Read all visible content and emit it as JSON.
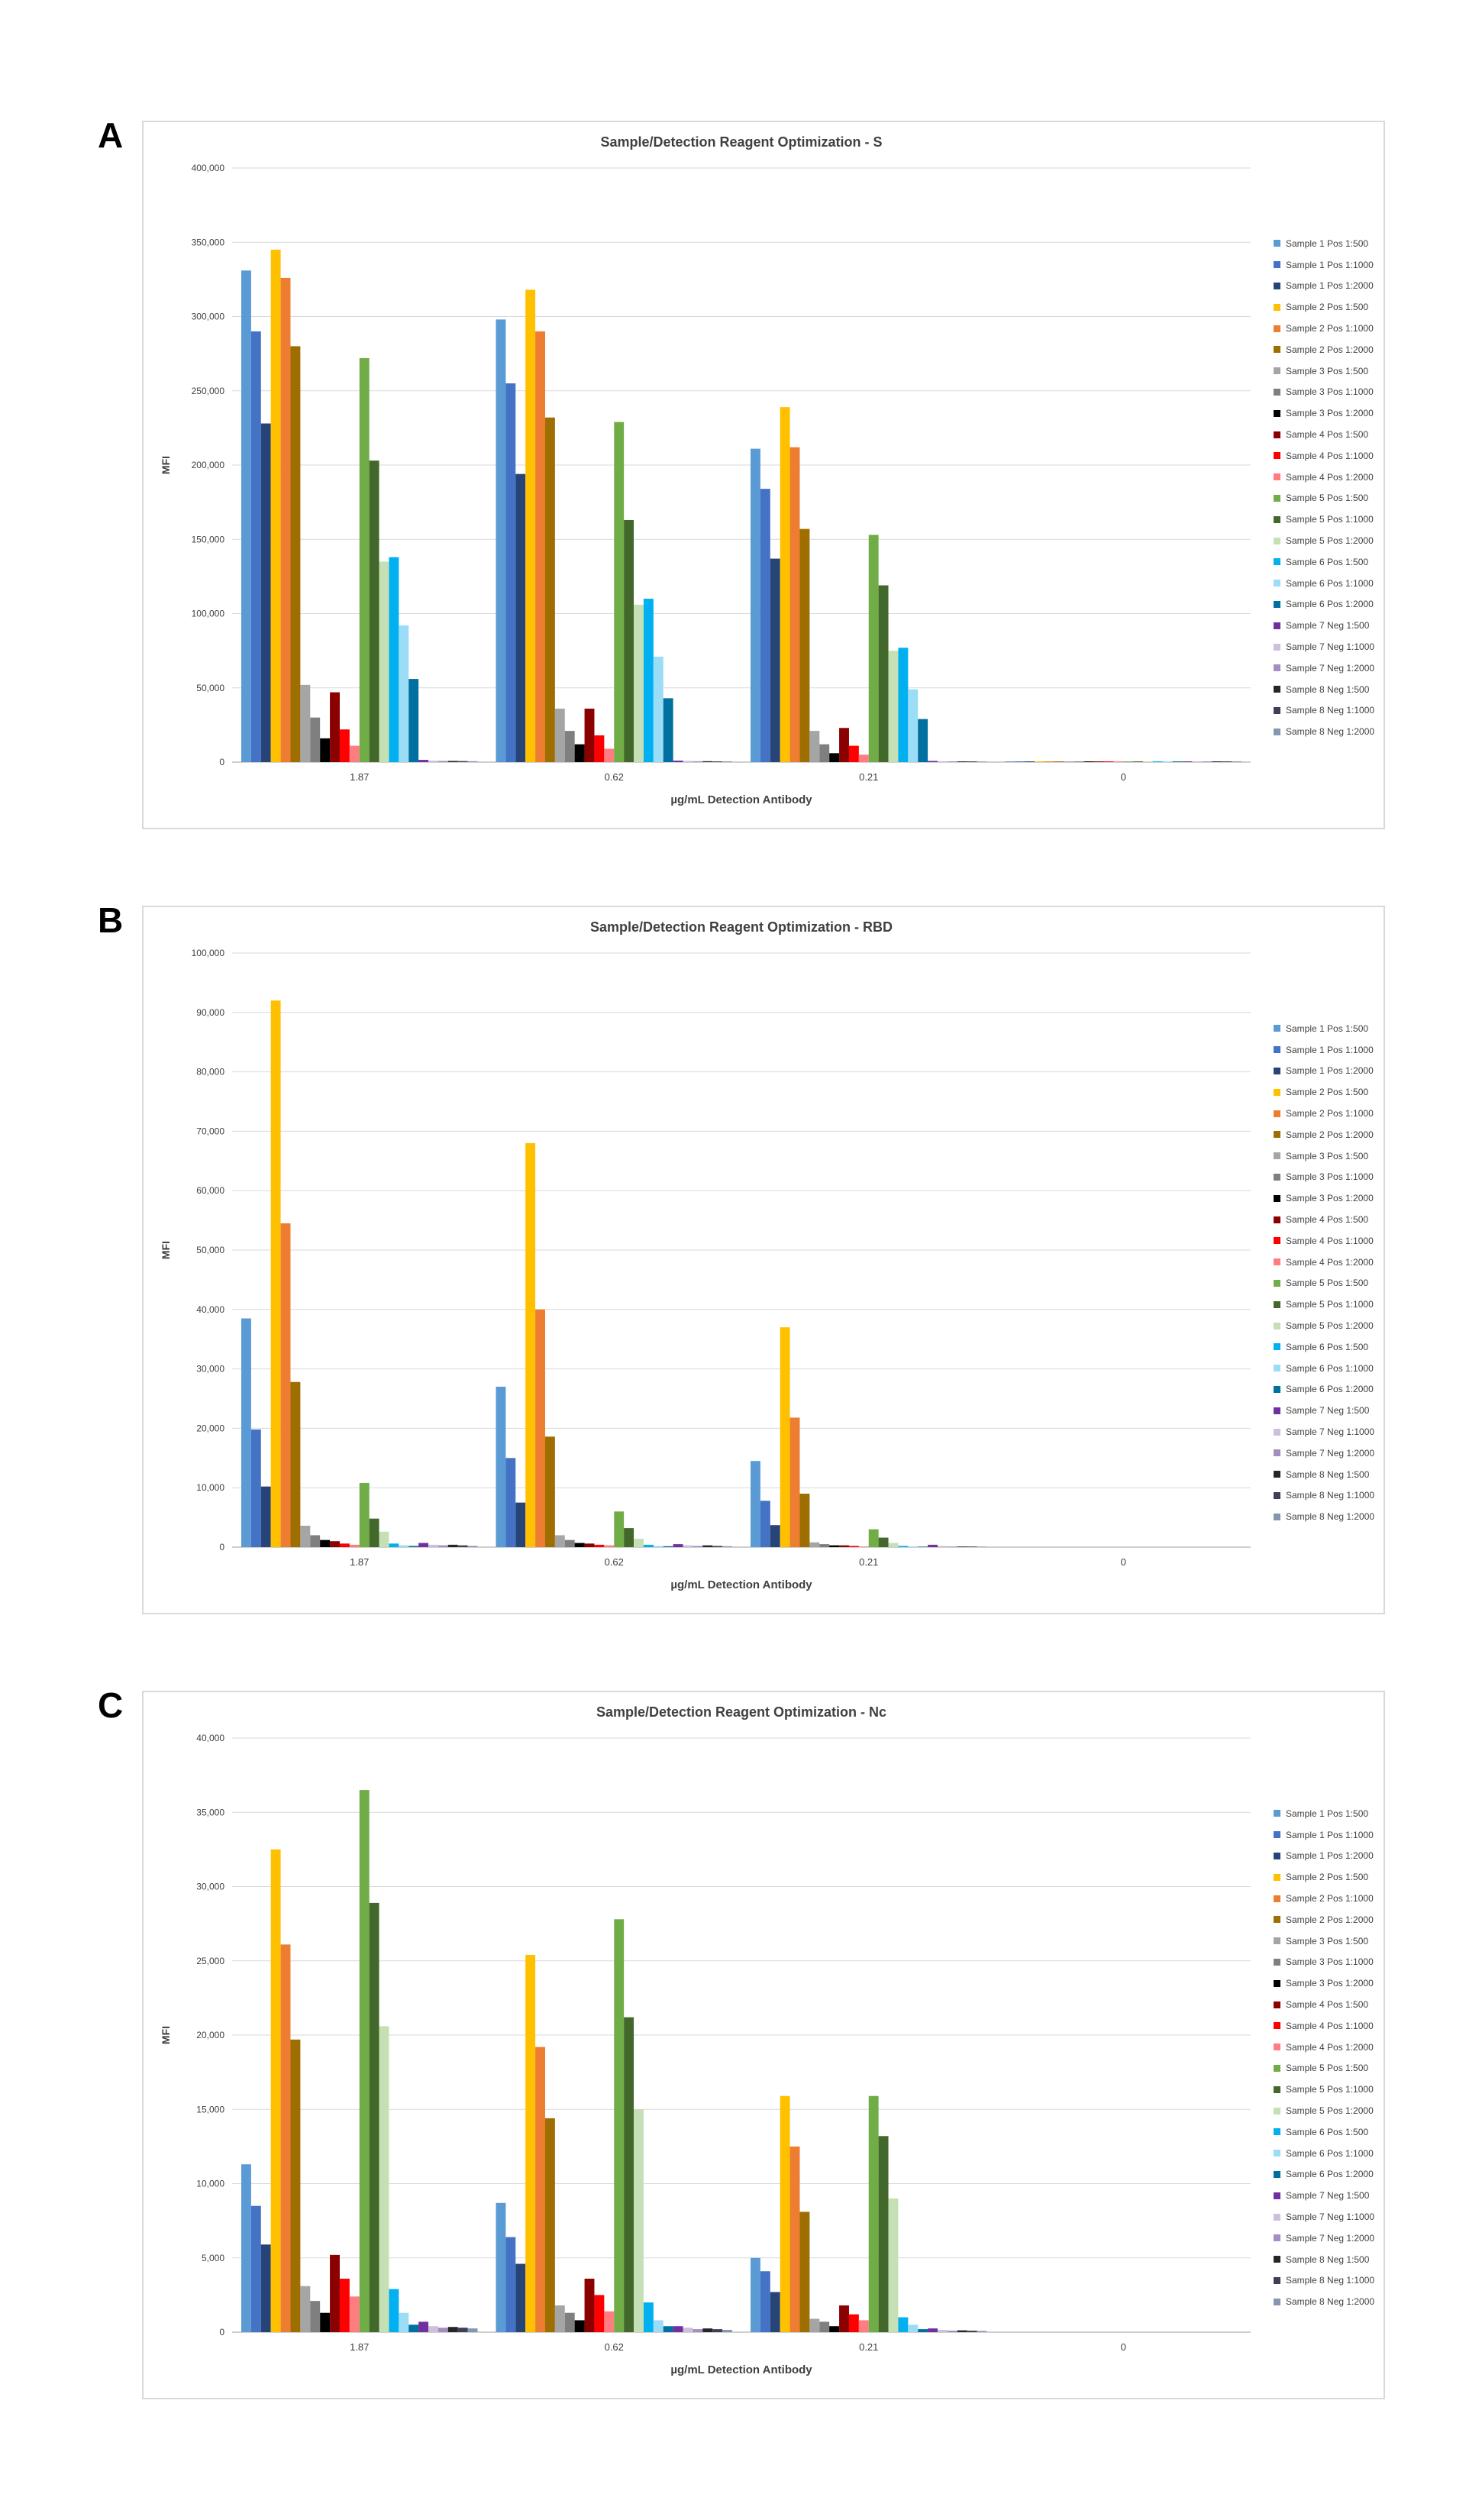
{
  "panels": [
    {
      "letter": "A"
    },
    {
      "letter": "B"
    },
    {
      "letter": "C"
    }
  ],
  "series_colors": [
    "#5b9bd5",
    "#4472c4",
    "#264478",
    "#ffc000",
    "#ed7d31",
    "#9e6f00",
    "#a5a5a5",
    "#7f7f7f",
    "#000000",
    "#8b0000",
    "#ff0000",
    "#ff7c80",
    "#70ad47",
    "#43682b",
    "#c5e0b4",
    "#00b0f0",
    "#9bdcf7",
    "#0070a0",
    "#7030a0",
    "#ccc0da",
    "#a48dc0",
    "#262626",
    "#403f58",
    "#8496b0"
  ],
  "chart_data": [
    {
      "type": "bar",
      "title": "Sample/Detection Reagent Optimization - S",
      "xlabel": "µg/mL Detection Antibody",
      "ylabel": "MFI",
      "ylim": [
        0,
        400000
      ],
      "yticks": [
        0,
        50000,
        100000,
        150000,
        200000,
        250000,
        300000,
        350000,
        400000
      ],
      "ytick_labels": [
        "0",
        "50,000",
        "100,000",
        "150,000",
        "200,000",
        "250,000",
        "300,000",
        "350,000",
        "400,000"
      ],
      "grid": true,
      "legend_position": "right",
      "categories": [
        "1.87",
        "0.62",
        "0.21",
        "0"
      ],
      "series": [
        {
          "name": "Sample 1 Pos 1:500",
          "values": [
            331000,
            298000,
            211000,
            500
          ]
        },
        {
          "name": "Sample 1 Pos 1:1000",
          "values": [
            290000,
            255000,
            184000,
            500
          ]
        },
        {
          "name": "Sample 1 Pos 1:2000",
          "values": [
            228000,
            194000,
            137000,
            500
          ]
        },
        {
          "name": "Sample 2 Pos 1:500",
          "values": [
            345000,
            318000,
            239000,
            500
          ]
        },
        {
          "name": "Sample 2 Pos 1:1000",
          "values": [
            326000,
            290000,
            212000,
            500
          ]
        },
        {
          "name": "Sample 2 Pos 1:2000",
          "values": [
            280000,
            232000,
            157000,
            500
          ]
        },
        {
          "name": "Sample 3 Pos 1:500",
          "values": [
            52000,
            36000,
            21000,
            500
          ]
        },
        {
          "name": "Sample 3 Pos 1:1000",
          "values": [
            30000,
            21000,
            12000,
            500
          ]
        },
        {
          "name": "Sample 3 Pos 1:2000",
          "values": [
            16000,
            12000,
            6000,
            500
          ]
        },
        {
          "name": "Sample 4 Pos 1:500",
          "values": [
            47000,
            36000,
            23000,
            500
          ]
        },
        {
          "name": "Sample 4 Pos 1:1000",
          "values": [
            22000,
            18000,
            11000,
            500
          ]
        },
        {
          "name": "Sample 4 Pos 1:2000",
          "values": [
            11000,
            9000,
            5000,
            500
          ]
        },
        {
          "name": "Sample 5 Pos 1:500",
          "values": [
            272000,
            229000,
            153000,
            500
          ]
        },
        {
          "name": "Sample 5 Pos 1:1000",
          "values": [
            203000,
            163000,
            119000,
            500
          ]
        },
        {
          "name": "Sample 5 Pos 1:2000",
          "values": [
            135000,
            106000,
            75000,
            500
          ]
        },
        {
          "name": "Sample 6 Pos 1:500",
          "values": [
            138000,
            110000,
            77000,
            500
          ]
        },
        {
          "name": "Sample 6 Pos 1:1000",
          "values": [
            92000,
            71000,
            49000,
            500
          ]
        },
        {
          "name": "Sample 6 Pos 1:2000",
          "values": [
            56000,
            43000,
            29000,
            500
          ]
        },
        {
          "name": "Sample 7 Neg 1:500",
          "values": [
            1500,
            1000,
            800,
            500
          ]
        },
        {
          "name": "Sample 7 Neg 1:1000",
          "values": [
            1000,
            800,
            600,
            500
          ]
        },
        {
          "name": "Sample 7 Neg 1:2000",
          "values": [
            800,
            600,
            500,
            500
          ]
        },
        {
          "name": "Sample 8 Neg 1:500",
          "values": [
            800,
            600,
            500,
            500
          ]
        },
        {
          "name": "Sample 8 Neg 1:1000",
          "values": [
            700,
            500,
            500,
            500
          ]
        },
        {
          "name": "Sample 8 Neg 1:2000",
          "values": [
            600,
            500,
            400,
            500
          ]
        }
      ]
    },
    {
      "type": "bar",
      "title": "Sample/Detection Reagent Optimization - RBD",
      "xlabel": "µg/mL Detection Antibody",
      "ylabel": "MFI",
      "ylim": [
        0,
        100000
      ],
      "yticks": [
        0,
        10000,
        20000,
        30000,
        40000,
        50000,
        60000,
        70000,
        80000,
        90000,
        100000
      ],
      "ytick_labels": [
        "0",
        "10,000",
        "20,000",
        "30,000",
        "40,000",
        "50,000",
        "60,000",
        "70,000",
        "80,000",
        "90,000",
        "100,000"
      ],
      "grid": true,
      "legend_position": "right",
      "categories": [
        "1.87",
        "0.62",
        "0.21",
        "0"
      ],
      "series": [
        {
          "name": "Sample 1 Pos 1:500",
          "values": [
            38500,
            27000,
            14500,
            0
          ]
        },
        {
          "name": "Sample 1 Pos 1:1000",
          "values": [
            19800,
            15000,
            7800,
            0
          ]
        },
        {
          "name": "Sample 1 Pos 1:2000",
          "values": [
            10200,
            7500,
            3700,
            0
          ]
        },
        {
          "name": "Sample 2 Pos 1:500",
          "values": [
            92000,
            68000,
            37000,
            0
          ]
        },
        {
          "name": "Sample 2 Pos 1:1000",
          "values": [
            54500,
            40000,
            21800,
            0
          ]
        },
        {
          "name": "Sample 2 Pos 1:2000",
          "values": [
            27800,
            18600,
            9000,
            0
          ]
        },
        {
          "name": "Sample 3 Pos 1:500",
          "values": [
            3600,
            2000,
            800,
            0
          ]
        },
        {
          "name": "Sample 3 Pos 1:1000",
          "values": [
            2000,
            1200,
            500,
            0
          ]
        },
        {
          "name": "Sample 3 Pos 1:2000",
          "values": [
            1200,
            700,
            300,
            0
          ]
        },
        {
          "name": "Sample 4 Pos 1:500",
          "values": [
            1000,
            600,
            300,
            0
          ]
        },
        {
          "name": "Sample 4 Pos 1:1000",
          "values": [
            600,
            400,
            200,
            0
          ]
        },
        {
          "name": "Sample 4 Pos 1:2000",
          "values": [
            400,
            300,
            100,
            0
          ]
        },
        {
          "name": "Sample 5 Pos 1:500",
          "values": [
            10800,
            6000,
            3000,
            0
          ]
        },
        {
          "name": "Sample 5 Pos 1:1000",
          "values": [
            4800,
            3200,
            1600,
            0
          ]
        },
        {
          "name": "Sample 5 Pos 1:2000",
          "values": [
            2600,
            1400,
            700,
            0
          ]
        },
        {
          "name": "Sample 6 Pos 1:500",
          "values": [
            600,
            400,
            200,
            0
          ]
        },
        {
          "name": "Sample 6 Pos 1:1000",
          "values": [
            300,
            200,
            100,
            0
          ]
        },
        {
          "name": "Sample 6 Pos 1:2000",
          "values": [
            200,
            150,
            80,
            0
          ]
        },
        {
          "name": "Sample 7 Neg 1:500",
          "values": [
            700,
            500,
            400,
            0
          ]
        },
        {
          "name": "Sample 7 Neg 1:1000",
          "values": [
            400,
            300,
            200,
            0
          ]
        },
        {
          "name": "Sample 7 Neg 1:2000",
          "values": [
            300,
            200,
            100,
            0
          ]
        },
        {
          "name": "Sample 8 Neg 1:500",
          "values": [
            400,
            300,
            100,
            0
          ]
        },
        {
          "name": "Sample 8 Neg 1:1000",
          "values": [
            300,
            200,
            100,
            0
          ]
        },
        {
          "name": "Sample 8 Neg 1:2000",
          "values": [
            200,
            150,
            80,
            0
          ]
        }
      ]
    },
    {
      "type": "bar",
      "title": "Sample/Detection Reagent Optimization - Nc",
      "xlabel": "µg/mL Detection Antibody",
      "ylabel": "MFI",
      "ylim": [
        0,
        40000
      ],
      "yticks": [
        0,
        5000,
        10000,
        15000,
        20000,
        25000,
        30000,
        35000,
        40000
      ],
      "ytick_labels": [
        "0",
        "5,000",
        "10,000",
        "15,000",
        "20,000",
        "25,000",
        "30,000",
        "35,000",
        "40,000"
      ],
      "grid": true,
      "legend_position": "right",
      "categories": [
        "1.87",
        "0.62",
        "0.21",
        "0"
      ],
      "series": [
        {
          "name": "Sample 1 Pos 1:500",
          "values": [
            11300,
            8700,
            5000,
            0
          ]
        },
        {
          "name": "Sample 1 Pos 1:1000",
          "values": [
            8500,
            6400,
            4100,
            0
          ]
        },
        {
          "name": "Sample 1 Pos 1:2000",
          "values": [
            5900,
            4600,
            2700,
            0
          ]
        },
        {
          "name": "Sample 2 Pos 1:500",
          "values": [
            32500,
            25400,
            15900,
            0
          ]
        },
        {
          "name": "Sample 2 Pos 1:1000",
          "values": [
            26100,
            19200,
            12500,
            0
          ]
        },
        {
          "name": "Sample 2 Pos 1:2000",
          "values": [
            19700,
            14400,
            8100,
            0
          ]
        },
        {
          "name": "Sample 3 Pos 1:500",
          "values": [
            3100,
            1800,
            900,
            0
          ]
        },
        {
          "name": "Sample 3 Pos 1:1000",
          "values": [
            2100,
            1300,
            700,
            0
          ]
        },
        {
          "name": "Sample 3 Pos 1:2000",
          "values": [
            1300,
            800,
            400,
            0
          ]
        },
        {
          "name": "Sample 4 Pos 1:500",
          "values": [
            5200,
            3600,
            1800,
            0
          ]
        },
        {
          "name": "Sample 4 Pos 1:1000",
          "values": [
            3600,
            2500,
            1200,
            0
          ]
        },
        {
          "name": "Sample 4 Pos 1:2000",
          "values": [
            2400,
            1400,
            800,
            0
          ]
        },
        {
          "name": "Sample 5 Pos 1:500",
          "values": [
            36500,
            27800,
            15900,
            0
          ]
        },
        {
          "name": "Sample 5 Pos 1:1000",
          "values": [
            28900,
            21200,
            13200,
            0
          ]
        },
        {
          "name": "Sample 5 Pos 1:2000",
          "values": [
            20600,
            15000,
            9000,
            0
          ]
        },
        {
          "name": "Sample 6 Pos 1:500",
          "values": [
            2900,
            2000,
            1000,
            0
          ]
        },
        {
          "name": "Sample 6 Pos 1:1000",
          "values": [
            1300,
            800,
            500,
            0
          ]
        },
        {
          "name": "Sample 6 Pos 1:2000",
          "values": [
            500,
            400,
            200,
            0
          ]
        },
        {
          "name": "Sample 7 Neg 1:500",
          "values": [
            700,
            400,
            250,
            0
          ]
        },
        {
          "name": "Sample 7 Neg 1:1000",
          "values": [
            400,
            300,
            150,
            0
          ]
        },
        {
          "name": "Sample 7 Neg 1:2000",
          "values": [
            300,
            200,
            100,
            0
          ]
        },
        {
          "name": "Sample 8 Neg 1:500",
          "values": [
            350,
            250,
            120,
            0
          ]
        },
        {
          "name": "Sample 8 Neg 1:1000",
          "values": [
            300,
            200,
            100,
            0
          ]
        },
        {
          "name": "Sample 8 Neg 1:2000",
          "values": [
            250,
            150,
            80,
            0
          ]
        }
      ]
    }
  ]
}
